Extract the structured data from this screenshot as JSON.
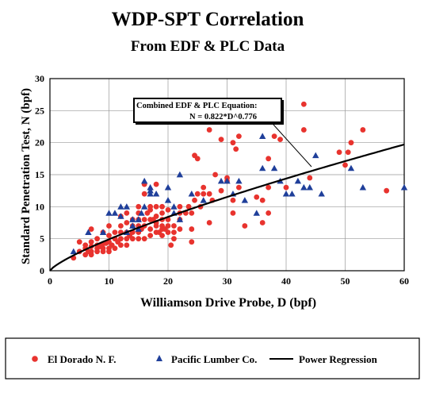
{
  "chart_data": {
    "type": "scatter",
    "title": "WDP-SPT Correlation",
    "subtitle": "From EDF & PLC Data",
    "xlabel": "Williamson Drive Probe, D (bpf)",
    "ylabel": "Standard Penetration Test, N (bpf)",
    "xlim": [
      0,
      60
    ],
    "ylim": [
      0,
      30
    ],
    "xticks": [
      0,
      10,
      20,
      30,
      40,
      50,
      60
    ],
    "yticks": [
      0,
      5,
      10,
      15,
      20,
      25,
      30
    ],
    "grid": true,
    "legend_position": "bottom",
    "annotation": {
      "line1": "Combined EDF & PLC Equation:",
      "line2": "N = 0.822*D^0.776"
    },
    "colors": {
      "edf": "#e8332e",
      "plc": "#1f3f9a",
      "curve": "#000000"
    },
    "series": [
      {
        "name": "El Dorado N. F.",
        "marker": "circle",
        "points": [
          [
            4,
            2
          ],
          [
            5,
            3
          ],
          [
            5,
            4.5
          ],
          [
            6,
            2.5
          ],
          [
            6,
            3.5
          ],
          [
            6,
            4
          ],
          [
            6.5,
            3
          ],
          [
            7,
            2.5
          ],
          [
            7,
            3
          ],
          [
            7,
            3.8
          ],
          [
            7,
            4.5
          ],
          [
            7,
            6.5
          ],
          [
            8,
            3
          ],
          [
            8,
            3.5
          ],
          [
            8,
            4
          ],
          [
            8,
            5
          ],
          [
            8.5,
            3.8
          ],
          [
            9,
            3
          ],
          [
            9,
            3.5
          ],
          [
            9,
            4.2
          ],
          [
            9,
            6
          ],
          [
            9.5,
            4.3
          ],
          [
            10,
            3
          ],
          [
            10,
            3.5
          ],
          [
            10,
            4.5
          ],
          [
            10,
            5.5
          ],
          [
            10,
            7
          ],
          [
            10.5,
            4
          ],
          [
            11,
            3.5
          ],
          [
            11,
            5
          ],
          [
            11,
            6
          ],
          [
            11.5,
            4.5
          ],
          [
            12,
            4
          ],
          [
            12,
            5
          ],
          [
            12,
            6
          ],
          [
            12,
            7
          ],
          [
            12,
            8.5
          ],
          [
            13,
            4
          ],
          [
            13,
            5
          ],
          [
            13,
            6
          ],
          [
            13,
            7.5
          ],
          [
            13,
            9
          ],
          [
            13.5,
            5.5
          ],
          [
            14,
            6
          ],
          [
            14,
            5
          ],
          [
            14,
            7
          ],
          [
            14,
            8
          ],
          [
            15,
            5
          ],
          [
            15,
            6
          ],
          [
            15,
            7
          ],
          [
            15,
            8
          ],
          [
            15,
            9
          ],
          [
            15,
            10
          ],
          [
            15.5,
            6.5
          ],
          [
            16,
            5
          ],
          [
            16,
            7
          ],
          [
            16,
            8
          ],
          [
            16,
            12
          ],
          [
            16,
            13.5
          ],
          [
            16.5,
            9
          ],
          [
            17,
            5.5
          ],
          [
            17,
            6.5
          ],
          [
            17,
            8
          ],
          [
            17,
            9.5
          ],
          [
            17,
            10
          ],
          [
            17.5,
            8
          ],
          [
            18,
            6
          ],
          [
            18,
            7
          ],
          [
            18,
            7.5
          ],
          [
            18,
            8.5
          ],
          [
            18,
            10
          ],
          [
            18,
            13.5
          ],
          [
            18.5,
            6
          ],
          [
            19,
            5.5
          ],
          [
            19,
            6.5
          ],
          [
            19,
            7
          ],
          [
            19,
            8
          ],
          [
            19,
            9
          ],
          [
            19,
            10
          ],
          [
            19.5,
            6.5
          ],
          [
            20,
            6
          ],
          [
            20,
            7
          ],
          [
            20,
            8
          ],
          [
            20,
            9.5
          ],
          [
            20.5,
            4
          ],
          [
            21,
            5
          ],
          [
            21,
            6
          ],
          [
            21,
            7
          ],
          [
            22,
            6.5
          ],
          [
            22,
            8
          ],
          [
            22,
            9
          ],
          [
            22,
            10
          ],
          [
            23,
            9
          ],
          [
            23.5,
            10
          ],
          [
            24,
            4.5
          ],
          [
            24,
            6.5
          ],
          [
            24,
            9
          ],
          [
            24.5,
            11
          ],
          [
            24.5,
            18
          ],
          [
            25,
            17.5
          ],
          [
            25,
            12
          ],
          [
            25.5,
            10
          ],
          [
            26,
            12
          ],
          [
            26,
            13
          ],
          [
            27,
            12
          ],
          [
            27,
            22
          ],
          [
            27,
            7.5
          ],
          [
            27.5,
            11
          ],
          [
            28,
            15
          ],
          [
            29,
            12.5
          ],
          [
            29,
            20.5
          ],
          [
            30,
            14
          ],
          [
            30,
            14.5
          ],
          [
            31,
            20
          ],
          [
            31,
            11
          ],
          [
            31,
            9
          ],
          [
            31.5,
            19
          ],
          [
            32,
            21
          ],
          [
            32,
            13
          ],
          [
            33,
            7
          ],
          [
            35,
            11.5
          ],
          [
            36,
            11
          ],
          [
            36,
            7.5
          ],
          [
            37,
            9
          ],
          [
            37,
            13
          ],
          [
            37,
            17.5
          ],
          [
            38,
            21
          ],
          [
            39,
            20.5
          ],
          [
            40,
            13
          ],
          [
            43,
            26
          ],
          [
            43,
            22
          ],
          [
            44,
            14.5
          ],
          [
            49,
            18.5
          ],
          [
            50,
            16.5
          ],
          [
            50.5,
            18.5
          ],
          [
            51,
            20
          ],
          [
            53,
            22
          ],
          [
            57,
            12.5
          ]
        ]
      },
      {
        "name": "Pacific Lumber Co.",
        "marker": "triangle",
        "points": [
          [
            4,
            3
          ],
          [
            6.5,
            6
          ],
          [
            9,
            6
          ],
          [
            10,
            9
          ],
          [
            11,
            9
          ],
          [
            12,
            8.5
          ],
          [
            12,
            10
          ],
          [
            13,
            6
          ],
          [
            13,
            10
          ],
          [
            14,
            7
          ],
          [
            14,
            8
          ],
          [
            15,
            6.5
          ],
          [
            15,
            8
          ],
          [
            15.5,
            9
          ],
          [
            16,
            10
          ],
          [
            16,
            14
          ],
          [
            17,
            12
          ],
          [
            17,
            13
          ],
          [
            17,
            12.5
          ],
          [
            18,
            12
          ],
          [
            20,
            11
          ],
          [
            20,
            13
          ],
          [
            21,
            9
          ],
          [
            21,
            10
          ],
          [
            22,
            8
          ],
          [
            22,
            15
          ],
          [
            24,
            12
          ],
          [
            26,
            11
          ],
          [
            29,
            14
          ],
          [
            30,
            14
          ],
          [
            31,
            12
          ],
          [
            32,
            14
          ],
          [
            33,
            11
          ],
          [
            35,
            9
          ],
          [
            36,
            16
          ],
          [
            36,
            21
          ],
          [
            38,
            16
          ],
          [
            39,
            14
          ],
          [
            40,
            12
          ],
          [
            41,
            12
          ],
          [
            42,
            14
          ],
          [
            43,
            13
          ],
          [
            44,
            13
          ],
          [
            45,
            18
          ],
          [
            46,
            12
          ],
          [
            51,
            16
          ],
          [
            53,
            13
          ],
          [
            60,
            13
          ]
        ]
      }
    ],
    "regression": {
      "name": "Power Regression",
      "equation": "N = 0.822*D^0.776",
      "a": 0.822,
      "b": 0.776
    }
  }
}
